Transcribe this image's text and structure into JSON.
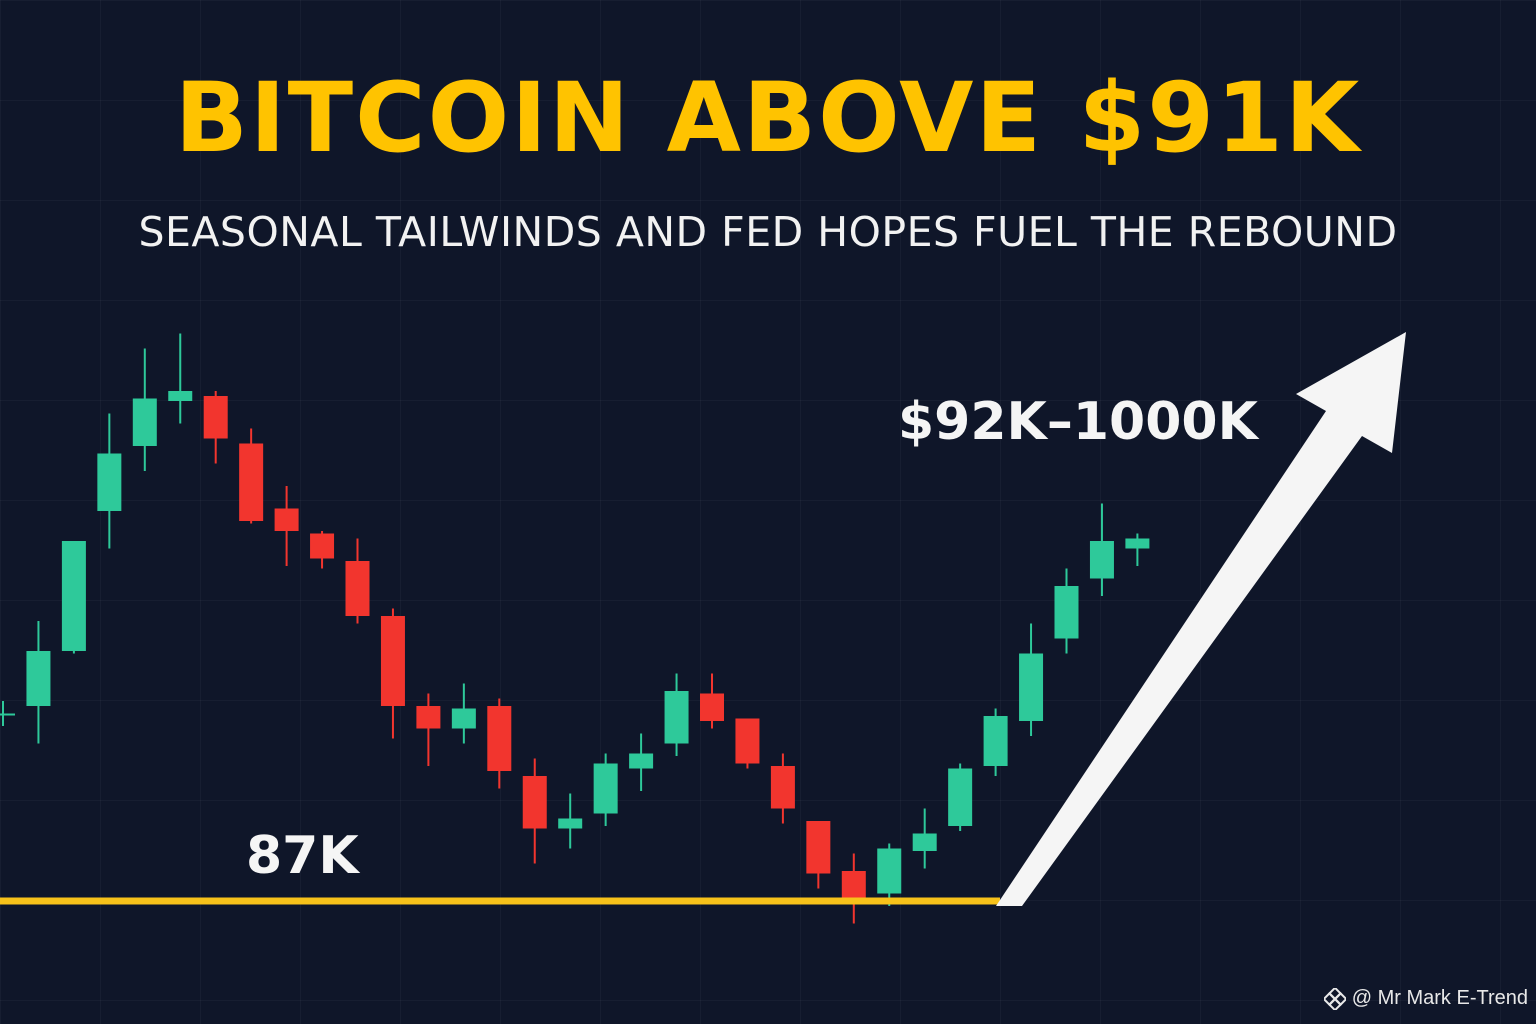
{
  "title": "BITCOIN ABOVE $91K",
  "subtitle": "SEASONAL TAILWINDS AND FED HOPES FUEL THE REBOUND",
  "range_label": "$92K–1000K",
  "support_label": "87K",
  "watermark": "@ Mr Mark E-Trend",
  "colors": {
    "background": "#0f1629",
    "title": "#ffc300",
    "bullish": "#2ec99a",
    "bearish": "#f2352e",
    "support_line": "#f7c21a",
    "arrow": "#f5f5f5"
  },
  "chart_data": {
    "type": "candlestick",
    "support_level": 87,
    "candles": [
      {
        "o": 90.75,
        "c": 90.75,
        "h": 91.0,
        "l": 90.5
      },
      {
        "o": 90.9,
        "c": 92.0,
        "h": 92.6,
        "l": 90.15
      },
      {
        "o": 92.0,
        "c": 94.2,
        "h": 94.2,
        "l": 91.95
      },
      {
        "o": 94.8,
        "c": 95.95,
        "h": 96.75,
        "l": 94.05
      },
      {
        "o": 96.1,
        "c": 97.05,
        "h": 98.05,
        "l": 95.6
      },
      {
        "o": 97.0,
        "c": 97.2,
        "h": 98.35,
        "l": 96.55
      },
      {
        "o": 97.1,
        "c": 96.25,
        "h": 97.2,
        "l": 95.75
      },
      {
        "o": 96.15,
        "c": 94.6,
        "h": 96.45,
        "l": 94.55
      },
      {
        "o": 94.85,
        "c": 94.4,
        "h": 95.3,
        "l": 93.7
      },
      {
        "o": 94.35,
        "c": 93.85,
        "h": 94.4,
        "l": 93.65
      },
      {
        "o": 93.8,
        "c": 92.7,
        "h": 94.25,
        "l": 92.55
      },
      {
        "o": 92.7,
        "c": 90.9,
        "h": 92.85,
        "l": 90.25
      },
      {
        "o": 90.9,
        "c": 90.45,
        "h": 91.15,
        "l": 89.7
      },
      {
        "o": 90.45,
        "c": 90.85,
        "h": 91.35,
        "l": 90.15
      },
      {
        "o": 90.9,
        "c": 89.6,
        "h": 91.05,
        "l": 89.25
      },
      {
        "o": 89.5,
        "c": 88.45,
        "h": 89.85,
        "l": 87.75
      },
      {
        "o": 88.45,
        "c": 88.65,
        "h": 89.15,
        "l": 88.05
      },
      {
        "o": 88.75,
        "c": 89.75,
        "h": 89.95,
        "l": 88.5
      },
      {
        "o": 89.65,
        "c": 89.95,
        "h": 90.35,
        "l": 89.2
      },
      {
        "o": 90.15,
        "c": 91.2,
        "h": 91.55,
        "l": 89.9
      },
      {
        "o": 91.15,
        "c": 90.6,
        "h": 91.55,
        "l": 90.45
      },
      {
        "o": 90.65,
        "c": 89.75,
        "h": 90.65,
        "l": 89.65
      },
      {
        "o": 89.7,
        "c": 88.85,
        "h": 89.95,
        "l": 88.55
      },
      {
        "o": 88.6,
        "c": 87.55,
        "h": 88.6,
        "l": 87.25
      },
      {
        "o": 87.6,
        "c": 87.05,
        "h": 87.95,
        "l": 86.55
      },
      {
        "o": 87.15,
        "c": 88.05,
        "h": 88.15,
        "l": 86.9
      },
      {
        "o": 88.0,
        "c": 88.35,
        "h": 88.85,
        "l": 87.65
      },
      {
        "o": 88.5,
        "c": 89.65,
        "h": 89.75,
        "l": 88.4
      },
      {
        "o": 89.7,
        "c": 90.7,
        "h": 90.85,
        "l": 89.5
      },
      {
        "o": 90.6,
        "c": 91.95,
        "h": 92.55,
        "l": 90.3
      },
      {
        "o": 92.25,
        "c": 93.3,
        "h": 93.65,
        "l": 91.95
      },
      {
        "o": 93.45,
        "c": 94.2,
        "h": 94.95,
        "l": 93.1
      },
      {
        "o": 94.05,
        "c": 94.25,
        "h": 94.35,
        "l": 93.7
      }
    ]
  }
}
